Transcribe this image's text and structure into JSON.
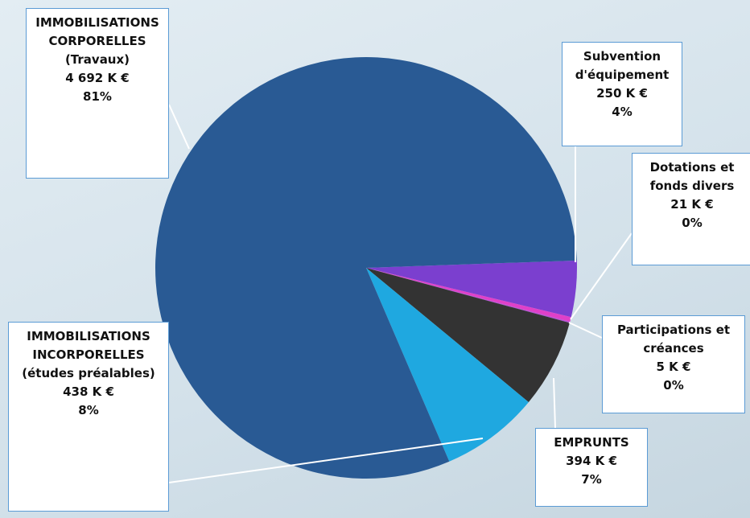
{
  "chart_data": {
    "type": "pie",
    "categories": [
      "Subvention d'équipement",
      "Dotations et fonds divers",
      "Participations et créances",
      "EMPRUNTS",
      "IMMOBILISATIONS INCORPORELLES (études préalables)",
      "IMMOBILISATIONS CORPORELLES (Travaux)"
    ],
    "values": [
      250,
      21,
      5,
      394,
      438,
      4692
    ],
    "value_labels": [
      "250 K €",
      "21 K €",
      "5 K €",
      "394 K €",
      "438 K €",
      "4 692 K €"
    ],
    "percent_labels": [
      "4%",
      "0%",
      "0%",
      "7%",
      "8%",
      "81%"
    ],
    "colors": [
      "#7b3fcf",
      "#e040c8",
      "#b34fd6",
      "#333333",
      "#1fa8e0",
      "#295a94"
    ]
  }
}
